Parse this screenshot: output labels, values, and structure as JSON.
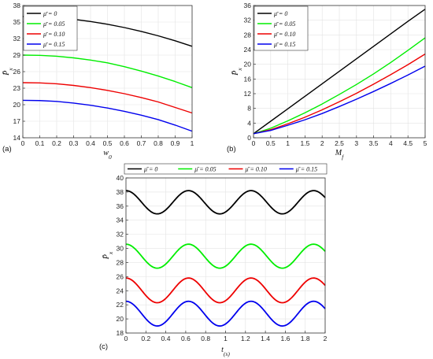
{
  "chart_data": [
    {
      "panel": "(a)",
      "type": "line",
      "xlabel": "w0",
      "ylabel": "P̄x",
      "xlim": [
        0,
        1
      ],
      "ylim": [
        14,
        38
      ],
      "xticks": [
        "0",
        "0.1",
        "0.2",
        "0.3",
        "0.4",
        "0.5",
        "0.6",
        "0.7",
        "0.8",
        "0.9",
        "1"
      ],
      "yticks": [
        "14",
        "17",
        "20",
        "23",
        "26",
        "29",
        "32",
        "35",
        "38"
      ],
      "grid": true,
      "legend_position": "top-left",
      "x": [
        0,
        0.1,
        0.2,
        0.3,
        0.4,
        0.5,
        0.6,
        0.7,
        0.8,
        0.9,
        1.0
      ],
      "series": [
        {
          "name": "μ̄ = 0",
          "color": "#000000",
          "values": [
            36.0,
            35.95,
            35.8,
            35.5,
            35.1,
            34.6,
            34.0,
            33.3,
            32.5,
            31.6,
            30.6
          ]
        },
        {
          "name": "μ̄ = 0.05",
          "color": "#00ee00",
          "values": [
            29.0,
            28.95,
            28.8,
            28.5,
            28.1,
            27.6,
            26.9,
            26.1,
            25.2,
            24.2,
            23.1
          ]
        },
        {
          "name": "μ̄ = 0.10",
          "color": "#ee0000",
          "values": [
            24.0,
            23.95,
            23.8,
            23.5,
            23.1,
            22.6,
            22.0,
            21.3,
            20.5,
            19.5,
            18.5
          ]
        },
        {
          "name": "μ̄ = 0.15",
          "color": "#0000ee",
          "values": [
            20.8,
            20.75,
            20.6,
            20.3,
            19.9,
            19.4,
            18.8,
            18.1,
            17.3,
            16.3,
            15.2
          ]
        }
      ]
    },
    {
      "panel": "(b)",
      "type": "line",
      "xlabel": "Mf",
      "ylabel": "P̄x",
      "xlim": [
        0,
        5
      ],
      "ylim": [
        0,
        36
      ],
      "xticks": [
        "0",
        "0.5",
        "1",
        "1.5",
        "2",
        "2.5",
        "3",
        "3.5",
        "4",
        "4.5",
        "5"
      ],
      "yticks": [
        "0",
        "4",
        "8",
        "12",
        "16",
        "20",
        "24",
        "28",
        "32",
        "36"
      ],
      "grid": true,
      "legend_position": "top-left",
      "x": [
        0,
        0.5,
        1,
        1.5,
        2,
        2.5,
        3,
        3.5,
        4,
        4.5,
        5
      ],
      "series": [
        {
          "name": "μ̄ = 0",
          "color": "#000000",
          "values": [
            1.1,
            4.5,
            7.9,
            11.3,
            14.7,
            18.1,
            21.5,
            24.9,
            28.3,
            31.7,
            35.0
          ]
        },
        {
          "name": "μ̄ = 0.05",
          "color": "#00ee00",
          "values": [
            1.1,
            2.6,
            4.6,
            6.8,
            9.2,
            11.8,
            14.5,
            17.4,
            20.5,
            23.8,
            27.2
          ]
        },
        {
          "name": "μ̄ = 0.10",
          "color": "#ee0000",
          "values": [
            1.1,
            2.2,
            3.8,
            5.6,
            7.6,
            9.8,
            12.1,
            14.6,
            17.2,
            19.9,
            22.8
          ]
        },
        {
          "name": "μ̄ = 0.15",
          "color": "#0000ee",
          "values": [
            1.1,
            2.0,
            3.4,
            4.9,
            6.6,
            8.5,
            10.5,
            12.6,
            14.8,
            17.1,
            19.5
          ]
        }
      ]
    },
    {
      "panel": "(c)",
      "type": "line",
      "xlabel": "t(s)",
      "ylabel": "P̄x",
      "xlim": [
        0,
        2
      ],
      "ylim": [
        18,
        40
      ],
      "xticks": [
        "0",
        "0.2",
        "0.4",
        "0.6",
        "0.8",
        "1",
        "1.2",
        "1.4",
        "1.6",
        "1.8",
        "2"
      ],
      "yticks": [
        "18",
        "20",
        "22",
        "24",
        "26",
        "28",
        "30",
        "32",
        "34",
        "36",
        "38",
        "40"
      ],
      "grid": true,
      "legend_position": "top-outside",
      "period": 0.628,
      "series": [
        {
          "name": "μ̄ = 0",
          "color": "#000000",
          "mean": 36.55,
          "amplitude": 1.65
        },
        {
          "name": "μ̄ = 0.05",
          "color": "#00ee00",
          "mean": 28.9,
          "amplitude": 1.7
        },
        {
          "name": "μ̄ = 0.10",
          "color": "#ee0000",
          "mean": 24.05,
          "amplitude": 1.75
        },
        {
          "name": "μ̄ = 0.15",
          "color": "#0000ee",
          "mean": 20.75,
          "amplitude": 1.75
        }
      ]
    }
  ]
}
